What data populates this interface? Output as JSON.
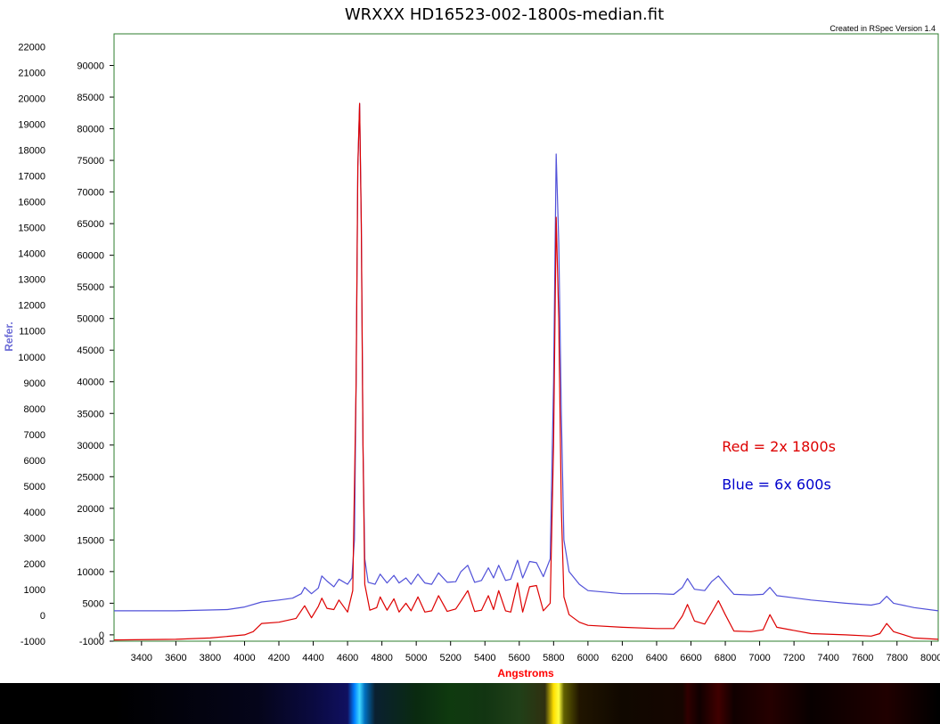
{
  "chart_data": {
    "type": "line",
    "title": "WRXXX HD16523-002-1800s-median.fit",
    "credit": "Created in RSpec Version 1.4",
    "xlabel": "Angstroms",
    "ylabel": "Refer.",
    "xlim": [
      3240,
      8040
    ],
    "ylim_right": [
      -1000,
      95000
    ],
    "ylim_left": [
      -1000,
      22500
    ],
    "x_ticks": [
      3400,
      3600,
      3800,
      4000,
      4200,
      4400,
      4600,
      4800,
      5000,
      5200,
      5400,
      5600,
      5800,
      6000,
      6200,
      6400,
      6600,
      6800,
      7000,
      7200,
      7400,
      7600,
      7800,
      8000
    ],
    "y_ticks_inner": [
      -1000,
      0,
      5000,
      10000,
      15000,
      20000,
      25000,
      30000,
      35000,
      40000,
      45000,
      50000,
      55000,
      60000,
      65000,
      70000,
      75000,
      80000,
      85000,
      90000
    ],
    "y_ticks_outer": [
      -1000,
      0,
      1000,
      2000,
      3000,
      4000,
      5000,
      6000,
      7000,
      8000,
      9000,
      10000,
      11000,
      12000,
      13000,
      14000,
      15000,
      16000,
      17000,
      18000,
      19000,
      20000,
      21000,
      22000
    ],
    "grid": false,
    "series": [
      {
        "name": "Blue = 6x 600s",
        "color": "#5050d8",
        "points": [
          [
            3240,
            3800
          ],
          [
            3600,
            3800
          ],
          [
            3900,
            4000
          ],
          [
            4000,
            4400
          ],
          [
            4100,
            5200
          ],
          [
            4200,
            5500
          ],
          [
            4280,
            5800
          ],
          [
            4330,
            6500
          ],
          [
            4350,
            7500
          ],
          [
            4390,
            6500
          ],
          [
            4430,
            7400
          ],
          [
            4450,
            9300
          ],
          [
            4480,
            8500
          ],
          [
            4520,
            7600
          ],
          [
            4550,
            8800
          ],
          [
            4600,
            8000
          ],
          [
            4625,
            9000
          ],
          [
            4640,
            15000
          ],
          [
            4650,
            40000
          ],
          [
            4660,
            74000
          ],
          [
            4670,
            84000
          ],
          [
            4680,
            65000
          ],
          [
            4690,
            30000
          ],
          [
            4700,
            12000
          ],
          [
            4720,
            8300
          ],
          [
            4760,
            8000
          ],
          [
            4790,
            9600
          ],
          [
            4830,
            8200
          ],
          [
            4870,
            9400
          ],
          [
            4900,
            8200
          ],
          [
            4940,
            9000
          ],
          [
            4970,
            8000
          ],
          [
            5010,
            9600
          ],
          [
            5050,
            8200
          ],
          [
            5090,
            8000
          ],
          [
            5130,
            9800
          ],
          [
            5180,
            8300
          ],
          [
            5230,
            8400
          ],
          [
            5260,
            10000
          ],
          [
            5300,
            11000
          ],
          [
            5340,
            8300
          ],
          [
            5380,
            8600
          ],
          [
            5420,
            10600
          ],
          [
            5450,
            9000
          ],
          [
            5480,
            11000
          ],
          [
            5520,
            8600
          ],
          [
            5550,
            8800
          ],
          [
            5590,
            11800
          ],
          [
            5620,
            9000
          ],
          [
            5660,
            11600
          ],
          [
            5700,
            11400
          ],
          [
            5740,
            9200
          ],
          [
            5780,
            12000
          ],
          [
            5800,
            40000
          ],
          [
            5815,
            76000
          ],
          [
            5830,
            62000
          ],
          [
            5845,
            35000
          ],
          [
            5860,
            15000
          ],
          [
            5890,
            10000
          ],
          [
            5950,
            8000
          ],
          [
            6000,
            7000
          ],
          [
            6200,
            6500
          ],
          [
            6400,
            6500
          ],
          [
            6500,
            6400
          ],
          [
            6550,
            7500
          ],
          [
            6580,
            8900
          ],
          [
            6620,
            7200
          ],
          [
            6680,
            7000
          ],
          [
            6720,
            8400
          ],
          [
            6760,
            9300
          ],
          [
            6800,
            8000
          ],
          [
            6850,
            6400
          ],
          [
            6950,
            6300
          ],
          [
            7020,
            6400
          ],
          [
            7060,
            7500
          ],
          [
            7100,
            6200
          ],
          [
            7300,
            5500
          ],
          [
            7500,
            5000
          ],
          [
            7650,
            4700
          ],
          [
            7700,
            5000
          ],
          [
            7740,
            6100
          ],
          [
            7780,
            5000
          ],
          [
            7900,
            4300
          ],
          [
            8040,
            3800
          ]
        ]
      },
      {
        "name": "Red = 2x 1800s",
        "color": "#dd0000",
        "points": [
          [
            3240,
            -800
          ],
          [
            3600,
            -700
          ],
          [
            3800,
            -500
          ],
          [
            4000,
            0
          ],
          [
            4050,
            500
          ],
          [
            4100,
            1800
          ],
          [
            4200,
            2000
          ],
          [
            4300,
            2600
          ],
          [
            4350,
            4600
          ],
          [
            4390,
            2700
          ],
          [
            4430,
            4500
          ],
          [
            4450,
            5800
          ],
          [
            4480,
            4200
          ],
          [
            4520,
            4000
          ],
          [
            4550,
            5500
          ],
          [
            4600,
            3600
          ],
          [
            4630,
            7000
          ],
          [
            4650,
            40000
          ],
          [
            4660,
            74000
          ],
          [
            4670,
            84000
          ],
          [
            4680,
            65000
          ],
          [
            4690,
            30000
          ],
          [
            4700,
            8000
          ],
          [
            4730,
            3900
          ],
          [
            4770,
            4300
          ],
          [
            4790,
            6000
          ],
          [
            4830,
            3900
          ],
          [
            4870,
            5700
          ],
          [
            4900,
            3600
          ],
          [
            4940,
            5000
          ],
          [
            4970,
            3800
          ],
          [
            5010,
            6000
          ],
          [
            5050,
            3600
          ],
          [
            5090,
            3800
          ],
          [
            5130,
            6200
          ],
          [
            5180,
            3700
          ],
          [
            5230,
            4100
          ],
          [
            5260,
            5300
          ],
          [
            5300,
            7000
          ],
          [
            5340,
            3700
          ],
          [
            5380,
            3900
          ],
          [
            5420,
            6200
          ],
          [
            5450,
            4000
          ],
          [
            5480,
            7000
          ],
          [
            5520,
            3800
          ],
          [
            5550,
            3600
          ],
          [
            5590,
            8200
          ],
          [
            5620,
            3600
          ],
          [
            5660,
            7600
          ],
          [
            5700,
            7800
          ],
          [
            5740,
            3800
          ],
          [
            5780,
            5000
          ],
          [
            5800,
            30000
          ],
          [
            5815,
            66000
          ],
          [
            5830,
            50000
          ],
          [
            5845,
            20000
          ],
          [
            5860,
            6000
          ],
          [
            5890,
            3200
          ],
          [
            5950,
            2000
          ],
          [
            6000,
            1500
          ],
          [
            6200,
            1200
          ],
          [
            6400,
            1000
          ],
          [
            6500,
            1000
          ],
          [
            6550,
            3000
          ],
          [
            6580,
            4800
          ],
          [
            6620,
            2200
          ],
          [
            6680,
            1700
          ],
          [
            6720,
            3500
          ],
          [
            6760,
            5400
          ],
          [
            6800,
            3200
          ],
          [
            6850,
            600
          ],
          [
            6950,
            500
          ],
          [
            7020,
            800
          ],
          [
            7060,
            3200
          ],
          [
            7100,
            1200
          ],
          [
            7300,
            200
          ],
          [
            7500,
            0
          ],
          [
            7650,
            -200
          ],
          [
            7700,
            200
          ],
          [
            7740,
            1800
          ],
          [
            7780,
            500
          ],
          [
            7900,
            -500
          ],
          [
            8040,
            -700
          ]
        ]
      }
    ],
    "legend_annotations": [
      {
        "text": "Red = 2x 1800s",
        "color": "#dd0000",
        "at_wavelength": 6780,
        "at_value": 29000
      },
      {
        "text": "Blue = 6x 600s",
        "color": "#0000cc",
        "at_wavelength": 6780,
        "at_value": 23000
      }
    ],
    "spectrum_strip_stops": [
      {
        "wavelength": 3240,
        "color": "#000000"
      },
      {
        "wavelength": 4080,
        "color": "#05051a"
      },
      {
        "wavelength": 4400,
        "color": "#0a0a40"
      },
      {
        "wavelength": 4600,
        "color": "#101060"
      },
      {
        "wavelength": 4640,
        "color": "#0080ff"
      },
      {
        "wavelength": 4670,
        "color": "#40d8ff"
      },
      {
        "wavelength": 4700,
        "color": "#0070c0"
      },
      {
        "wavelength": 4760,
        "color": "#0a2030"
      },
      {
        "wavelength": 5000,
        "color": "#0a2a10"
      },
      {
        "wavelength": 5200,
        "color": "#0f3a0f"
      },
      {
        "wavelength": 5400,
        "color": "#123512"
      },
      {
        "wavelength": 5600,
        "color": "#204018"
      },
      {
        "wavelength": 5750,
        "color": "#303010"
      },
      {
        "wavelength": 5800,
        "color": "#ffe000"
      },
      {
        "wavelength": 5830,
        "color": "#ffff40"
      },
      {
        "wavelength": 5860,
        "color": "#606000"
      },
      {
        "wavelength": 5950,
        "color": "#201500"
      },
      {
        "wavelength": 6200,
        "color": "#100800"
      },
      {
        "wavelength": 6550,
        "color": "#150500"
      },
      {
        "wavelength": 6580,
        "color": "#300000"
      },
      {
        "wavelength": 6650,
        "color": "#100000"
      },
      {
        "wavelength": 6760,
        "color": "#400000"
      },
      {
        "wavelength": 6850,
        "color": "#100000"
      },
      {
        "wavelength": 7060,
        "color": "#250000"
      },
      {
        "wavelength": 7300,
        "color": "#080000"
      },
      {
        "wavelength": 7740,
        "color": "#200000"
      },
      {
        "wavelength": 8040,
        "color": "#000000"
      }
    ]
  }
}
